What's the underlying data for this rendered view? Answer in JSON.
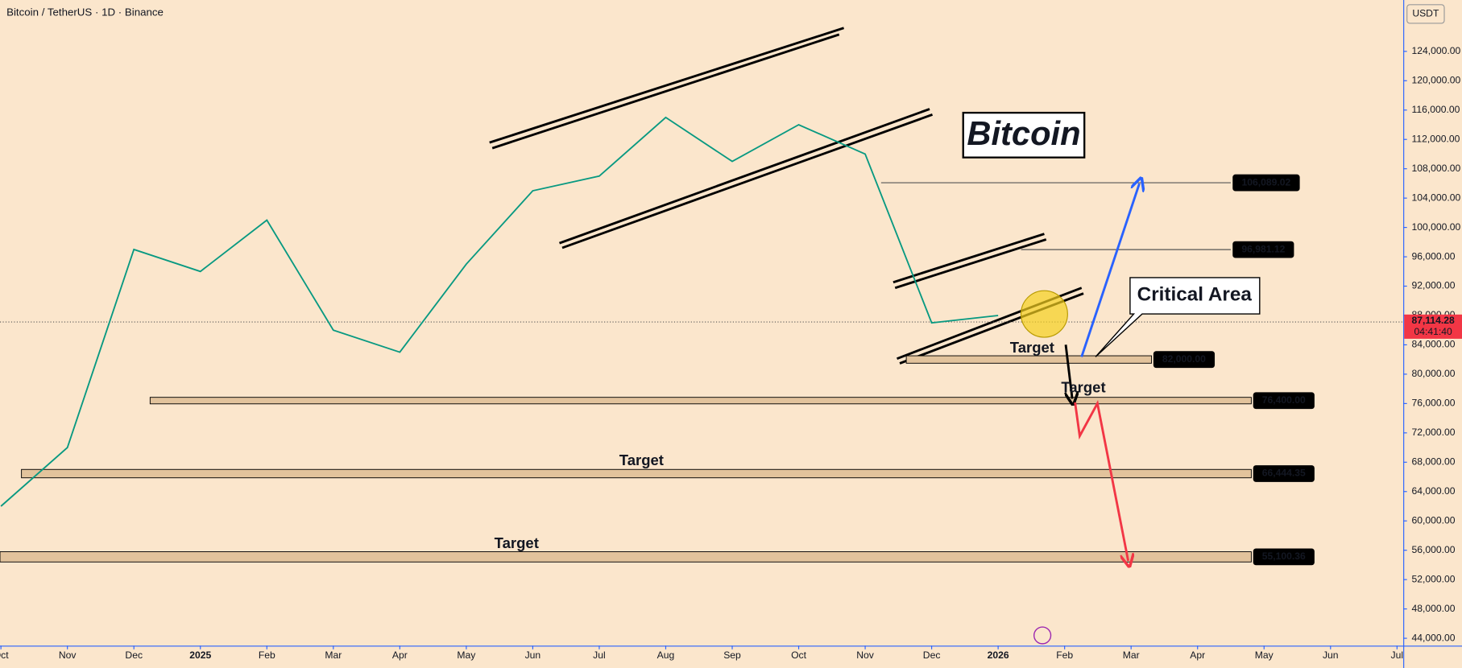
{
  "chart_data": {
    "type": "line",
    "title": "Bitcoin / TetherUS · 1D · Binance",
    "currency": "USDT",
    "x": [
      "2024-10",
      "2024-11",
      "2024-12",
      "2025-01",
      "2025-02",
      "2025-03",
      "2025-04",
      "2025-05",
      "2025-06",
      "2025-07",
      "2025-08",
      "2025-09",
      "2025-10",
      "2025-11",
      "2025-12",
      "2026-01"
    ],
    "series": [
      {
        "name": "BTCUSDT",
        "color": "#089981",
        "values": [
          62000,
          70000,
          97000,
          94000,
          101000,
          86000,
          83000,
          95000,
          105000,
          107000,
          115000,
          109000,
          114000,
          110000,
          87000,
          88000
        ]
      }
    ],
    "last_price": {
      "value": 87114.28,
      "label": "87,114.28"
    },
    "countdown": "04:41:40",
    "ylim": [
      43000,
      131000
    ],
    "yticks": [
      {
        "value": 44000,
        "label": "44,000.00"
      },
      {
        "value": 48000,
        "label": "48,000.00"
      },
      {
        "value": 52000,
        "label": "52,000.00"
      },
      {
        "value": 56000,
        "label": "56,000.00"
      },
      {
        "value": 60000,
        "label": "60,000.00"
      },
      {
        "value": 64000,
        "label": "64,000.00"
      },
      {
        "value": 68000,
        "label": "68,000.00"
      },
      {
        "value": 72000,
        "label": "72,000.00"
      },
      {
        "value": 76000,
        "label": "76,000.00"
      },
      {
        "value": 80000,
        "label": "80,000.00"
      },
      {
        "value": 84000,
        "label": "84,000.00"
      },
      {
        "value": 88000,
        "label": "88,000.00"
      },
      {
        "value": 92000,
        "label": "92,000.00"
      },
      {
        "value": 96000,
        "label": "96,000.00"
      },
      {
        "value": 100000,
        "label": "100,000.00"
      },
      {
        "value": 104000,
        "label": "104,000.00"
      },
      {
        "value": 108000,
        "label": "108,000.00"
      },
      {
        "value": 112000,
        "label": "112,000.00"
      },
      {
        "value": 116000,
        "label": "116,000.00"
      },
      {
        "value": 120000,
        "label": "120,000.00"
      },
      {
        "value": 124000,
        "label": "124,000.00"
      }
    ],
    "xticks": [
      {
        "value": "2024-10",
        "label": "Oct"
      },
      {
        "value": "2024-11",
        "label": "Nov"
      },
      {
        "value": "2024-12",
        "label": "Dec"
      },
      {
        "value": "2025-01",
        "label": "2025"
      },
      {
        "value": "2025-02",
        "label": "Feb"
      },
      {
        "value": "2025-03",
        "label": "Mar"
      },
      {
        "value": "2025-04",
        "label": "Apr"
      },
      {
        "value": "2025-05",
        "label": "May"
      },
      {
        "value": "2025-06",
        "label": "Jun"
      },
      {
        "value": "2025-07",
        "label": "Jul"
      },
      {
        "value": "2025-08",
        "label": "Aug"
      },
      {
        "value": "2025-09",
        "label": "Sep"
      },
      {
        "value": "2025-10",
        "label": "Oct"
      },
      {
        "value": "2025-11",
        "label": "Nov"
      },
      {
        "value": "2025-12",
        "label": "Dec"
      },
      {
        "value": "2026-01",
        "label": "2026"
      },
      {
        "value": "2026-02",
        "label": "Feb"
      },
      {
        "value": "2026-03",
        "label": "Mar"
      },
      {
        "value": "2026-04",
        "label": "Apr"
      },
      {
        "value": "2026-05",
        "label": "May"
      },
      {
        "value": "2026-06",
        "label": "Jun"
      },
      {
        "value": "2026-07",
        "label": "Jul"
      }
    ],
    "levels": [
      {
        "value": 106089.02,
        "label": "106,089.02"
      },
      {
        "value": 96981.12,
        "label": "96,981.12"
      },
      {
        "value": 82000,
        "label": "82,000.00"
      },
      {
        "value": 76400,
        "label": "76,400.00"
      },
      {
        "value": 66444.35,
        "label": "66,444.35"
      },
      {
        "value": 55100.36,
        "label": "55,100.36"
      }
    ],
    "annotations": [
      "Bitcoin",
      "Critical Area",
      "Target",
      "Target",
      "Target",
      "Target"
    ]
  }
}
